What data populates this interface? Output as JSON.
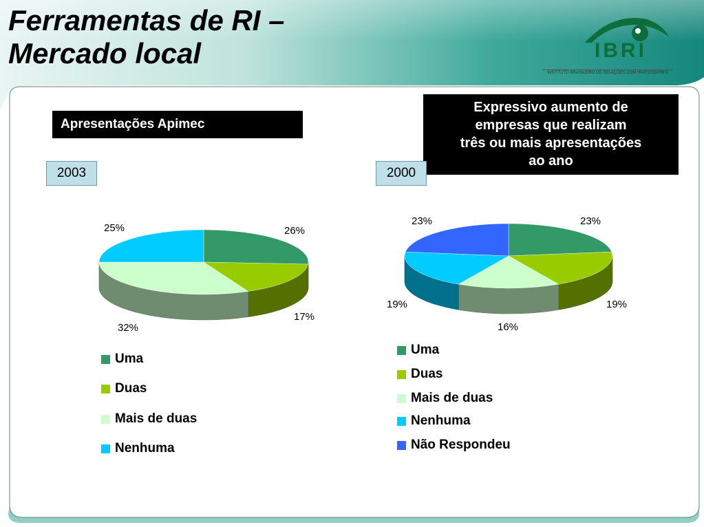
{
  "slide": {
    "title_line_1": "Ferramentas de RI –",
    "title_line_2": "Mercado local"
  },
  "logo": {
    "name": "IBRI",
    "subtitle": "INSTITUTO BRASILEIRO DE RELAÇÕES COM INVESTIDORES",
    "icon": "eye-logo-icon",
    "color": "#0d6e3c"
  },
  "section_heading": "Apresentações Apimec",
  "callout": {
    "lines": [
      "Expressivo aumento de",
      "empresas que realizam",
      "três ou mais apresentações",
      "ao ano"
    ]
  },
  "colors": {
    "uma": "#339966",
    "duas": "#99cc00",
    "mais_de_duas": "#ccffcc",
    "nenhuma": "#00ccff",
    "nao_respondeu": "#3366ff",
    "frame_teal": "#2aa198"
  },
  "chart_data": [
    {
      "type": "pie",
      "title": "2003",
      "categories": [
        "Uma",
        "Duas",
        "Mais de duas",
        "Nenhuma"
      ],
      "values": [
        26,
        17,
        32,
        25
      ],
      "labels": [
        "26%",
        "17%",
        "32%",
        "25%"
      ],
      "three_d": true,
      "legend_position": "bottom-left"
    },
    {
      "type": "pie",
      "title": "2000",
      "categories": [
        "Uma",
        "Duas",
        "Mais de duas",
        "Nenhuma",
        "Não Respondeu"
      ],
      "values": [
        23,
        19,
        16,
        19,
        23
      ],
      "labels": [
        "23%",
        "19%",
        "16%",
        "19%",
        "23%"
      ],
      "three_d": true,
      "legend_position": "bottom-right"
    }
  ]
}
